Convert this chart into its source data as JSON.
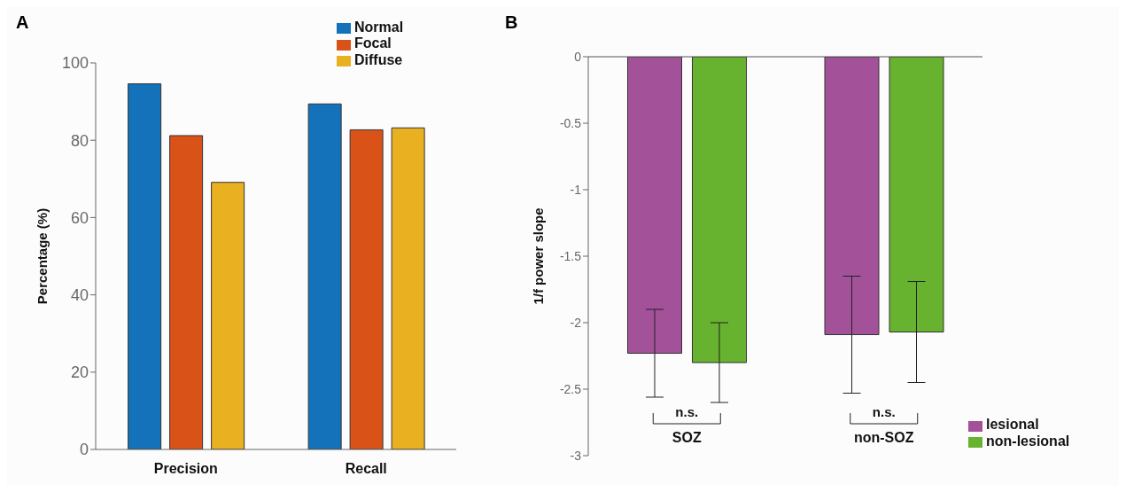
{
  "chart_data": [
    {
      "type": "bar",
      "title": "A",
      "ylabel": "Percentage (%)",
      "categories": [
        "Precision",
        "Recall"
      ],
      "series": [
        {
          "name": "Normal",
          "color": "#1372b9",
          "values": [
            94.6,
            89.4
          ]
        },
        {
          "name": "Focal",
          "color": "#d95319",
          "values": [
            81.2,
            82.7
          ]
        },
        {
          "name": "Diffuse",
          "color": "#e9b122",
          "values": [
            69.1,
            83.2
          ]
        }
      ],
      "ylim": [
        0,
        100
      ],
      "yticks": [
        0,
        20,
        40,
        60,
        80,
        100
      ],
      "grid": false,
      "legend": "top right"
    },
    {
      "type": "bar",
      "title": "B",
      "ylabel": "1/f power slope",
      "categories": [
        "SOZ",
        "non-SOZ"
      ],
      "series": [
        {
          "name": "lesional",
          "color": "#a35199",
          "values": [
            -2.23,
            -2.09
          ],
          "errors": [
            0.33,
            0.44
          ]
        },
        {
          "name": "non-lesional",
          "color": "#67b22f",
          "values": [
            -2.3,
            -2.07
          ],
          "errors": [
            0.3,
            0.38
          ]
        }
      ],
      "ylim": [
        -3,
        0
      ],
      "yticks": [
        -3,
        -2.5,
        -2,
        -1.5,
        -1,
        -0.5,
        0
      ],
      "grid": false,
      "legend": "bottom right",
      "annotations": [
        "n.s.",
        "n.s."
      ]
    }
  ]
}
